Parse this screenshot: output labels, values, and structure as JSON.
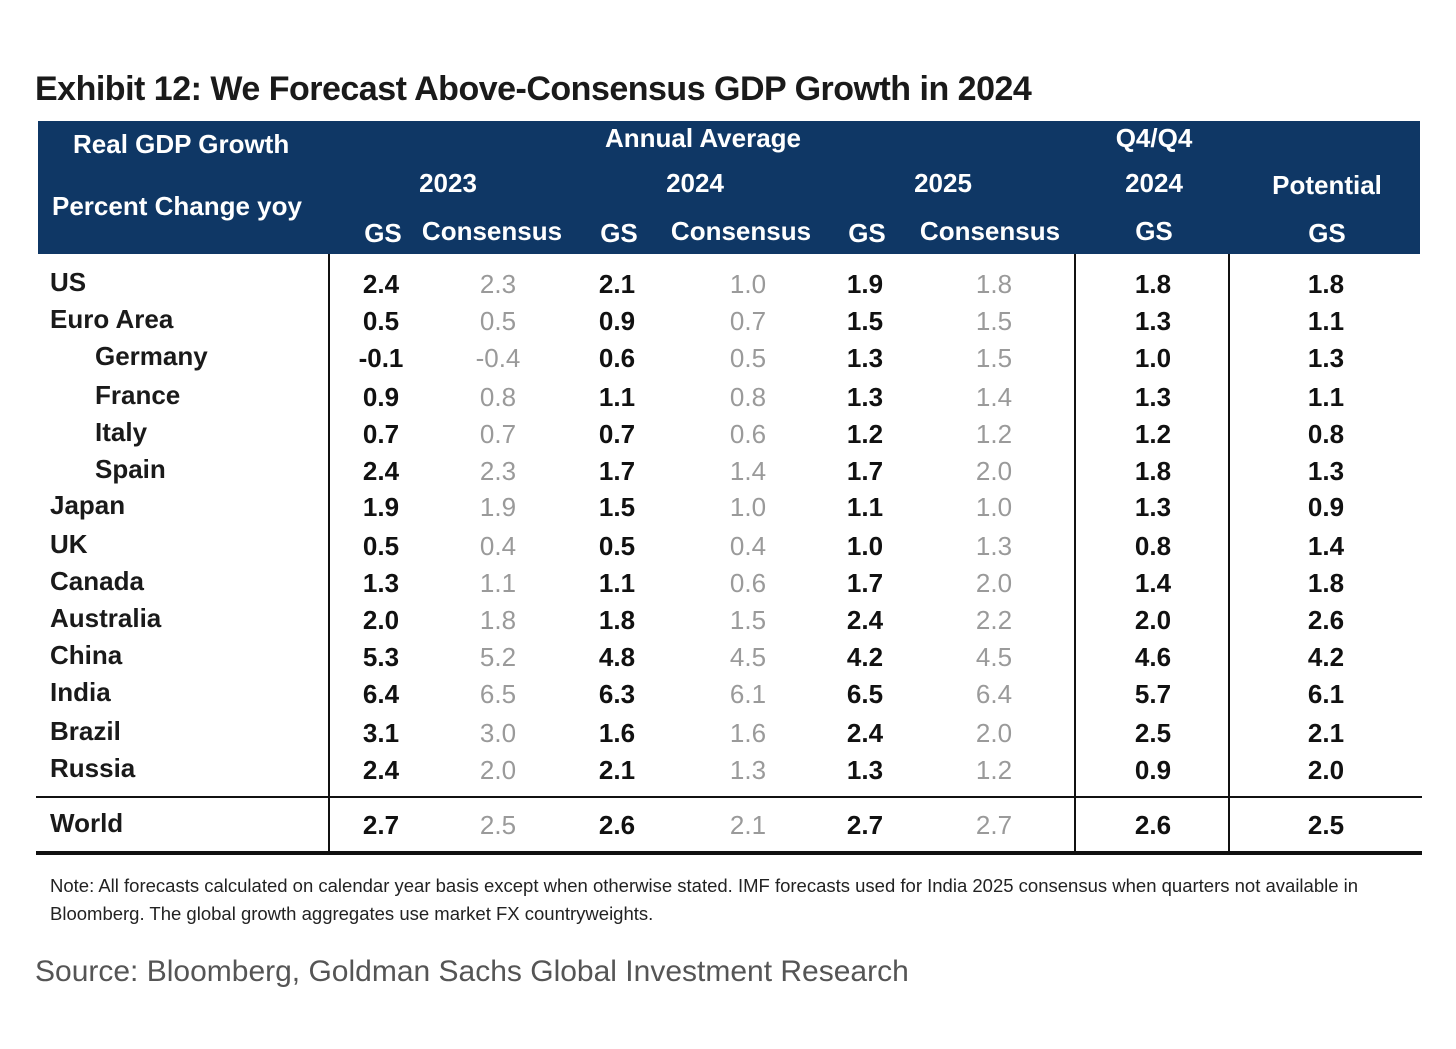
{
  "title": "Exhibit 12: We Forecast Above-Consensus GDP Growth in 2024",
  "header": {
    "real_gdp": "Real GDP Growth",
    "pct_change": "Percent Change yoy",
    "annual_average": "Annual Average",
    "q4q4": "Q4/Q4",
    "potential": "Potential",
    "y2023": "2023",
    "y2024": "2024",
    "y2025": "2025",
    "q4_2024": "2024",
    "gs": "GS",
    "consensus": "Consensus"
  },
  "rows": [
    {
      "label": "US",
      "indent": false,
      "v": [
        "2.4",
        "2.3",
        "2.1",
        "1.0",
        "1.9",
        "1.8",
        "1.8",
        "1.8"
      ]
    },
    {
      "label": "Euro Area",
      "indent": false,
      "v": [
        "0.5",
        "0.5",
        "0.9",
        "0.7",
        "1.5",
        "1.5",
        "1.3",
        "1.1"
      ]
    },
    {
      "label": "Germany",
      "indent": true,
      "v": [
        "-0.1",
        "-0.4",
        "0.6",
        "0.5",
        "1.3",
        "1.5",
        "1.0",
        "1.3"
      ]
    },
    {
      "label": "France",
      "indent": true,
      "v": [
        "0.9",
        "0.8",
        "1.1",
        "0.8",
        "1.3",
        "1.4",
        "1.3",
        "1.1"
      ]
    },
    {
      "label": "Italy",
      "indent": true,
      "v": [
        "0.7",
        "0.7",
        "0.7",
        "0.6",
        "1.2",
        "1.2",
        "1.2",
        "0.8"
      ]
    },
    {
      "label": "Spain",
      "indent": true,
      "v": [
        "2.4",
        "2.3",
        "1.7",
        "1.4",
        "1.7",
        "2.0",
        "1.8",
        "1.3"
      ]
    },
    {
      "label": "Japan",
      "indent": false,
      "v": [
        "1.9",
        "1.9",
        "1.5",
        "1.0",
        "1.1",
        "1.0",
        "1.3",
        "0.9"
      ]
    },
    {
      "label": "UK",
      "indent": false,
      "v": [
        "0.5",
        "0.4",
        "0.5",
        "0.4",
        "1.0",
        "1.3",
        "0.8",
        "1.4"
      ]
    },
    {
      "label": "Canada",
      "indent": false,
      "v": [
        "1.3",
        "1.1",
        "1.1",
        "0.6",
        "1.7",
        "2.0",
        "1.4",
        "1.8"
      ]
    },
    {
      "label": "Australia",
      "indent": false,
      "v": [
        "2.0",
        "1.8",
        "1.8",
        "1.5",
        "2.4",
        "2.2",
        "2.0",
        "2.6"
      ]
    },
    {
      "label": "China",
      "indent": false,
      "v": [
        "5.3",
        "5.2",
        "4.8",
        "4.5",
        "4.2",
        "4.5",
        "4.6",
        "4.2"
      ]
    },
    {
      "label": "India",
      "indent": false,
      "v": [
        "6.4",
        "6.5",
        "6.3",
        "6.1",
        "6.5",
        "6.4",
        "5.7",
        "6.1"
      ]
    },
    {
      "label": "Brazil",
      "indent": false,
      "v": [
        "3.1",
        "3.0",
        "1.6",
        "1.6",
        "2.4",
        "2.0",
        "2.5",
        "2.1"
      ]
    },
    {
      "label": "Russia",
      "indent": false,
      "v": [
        "2.4",
        "2.0",
        "2.1",
        "1.3",
        "1.3",
        "1.2",
        "0.9",
        "2.0"
      ]
    }
  ],
  "world": {
    "label": "World",
    "v": [
      "2.7",
      "2.5",
      "2.6",
      "2.1",
      "2.7",
      "2.7",
      "2.6",
      "2.5"
    ]
  },
  "note": "Note: All forecasts calculated on calendar year basis except when otherwise stated. IMF forecasts used for India 2025 consensus when quarters not available in Bloomberg. The global growth aggregates use market FX countryweights.",
  "source": "Source: Bloomberg, Goldman Sachs Global Investment Research",
  "colors": {
    "header_bg": "#0f3765",
    "gs_text": "#111111",
    "consensus_text": "#9a9a9a"
  }
}
